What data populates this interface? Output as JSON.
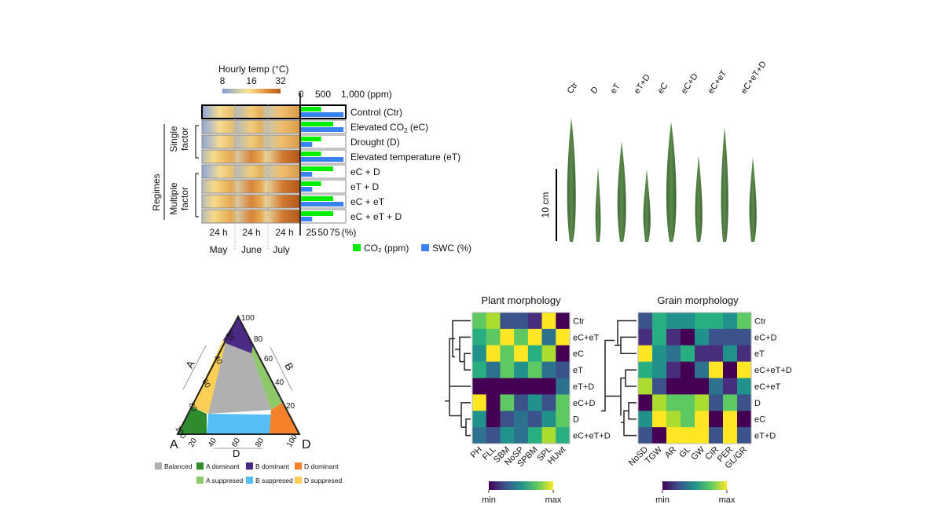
{
  "panel_a": {
    "colorbar_title": "Hourly  temp (°C)",
    "colorbar_ticks": [
      "8",
      "16",
      "32"
    ],
    "co2_axis_ticks": [
      "0",
      "500",
      "1,000 (ppm)"
    ],
    "swc_axis_ticks": [
      "25",
      "50",
      "75",
      "(%)"
    ],
    "time_labels": [
      "24 h",
      "24 h",
      "24 h"
    ],
    "month_labels": [
      "May",
      "June",
      "July"
    ],
    "group_label": "Regimes",
    "subgroup_labels": [
      "Single\nfactor",
      "Multiple\nfactor"
    ],
    "legend": [
      {
        "label": "CO₂ (ppm)",
        "color": "#00ee00"
      },
      {
        "label": "SWC (%)",
        "color": "#3a82f0"
      }
    ]
  },
  "panel_b": {
    "leaf_labels": [
      "Ctr",
      "D",
      "eT",
      "eT+D",
      "eC",
      "eC+D",
      "eC+eT",
      "eC+eT+D"
    ],
    "scale_bar_label": "10 cm"
  },
  "panel_c": {
    "vertex_labels": [
      "A",
      "D"
    ],
    "apex_tick": "100",
    "axis_labels": [
      "A",
      "B",
      "D"
    ],
    "left_ticks": [
      "20",
      "40",
      "60",
      "80",
      "100"
    ],
    "right_ticks": [
      "80",
      "60",
      "40",
      "20"
    ],
    "bottom_ticks": [
      "20",
      "40",
      "60",
      "80",
      "100"
    ],
    "legend": [
      {
        "label": "Balanced",
        "color": "#b0b0b0"
      },
      {
        "label": "A dominant",
        "color": "#2e8b2e"
      },
      {
        "label": "B dominant",
        "color": "#4b2a85"
      },
      {
        "label": "D dominant",
        "color": "#f5822a"
      },
      {
        "label": "A suppresed",
        "color": "#8fc86a"
      },
      {
        "label": "B suppresed",
        "color": "#55bff5"
      },
      {
        "label": "D suppresed",
        "color": "#fdd055"
      }
    ]
  },
  "colorbar_labels": {
    "min": "min",
    "max": "max"
  },
  "chart_data": [
    {
      "type": "bar",
      "title": "",
      "categories": [
        "Control (Ctr)",
        "Elevated CO2 (eC)",
        "Drought (D)",
        "Elevated temperature (eT)",
        "eC + D",
        "eT + D",
        "eC + eT",
        "eC + eT + D"
      ],
      "series": [
        {
          "name": "CO2 (ppm)",
          "color": "#00ee00",
          "values": [
            450,
            720,
            450,
            450,
            720,
            450,
            720,
            720
          ],
          "xlim": [
            0,
            1000
          ]
        },
        {
          "name": "SWC (%)",
          "color": "#3a82f0",
          "values": [
            95,
            95,
            25,
            95,
            25,
            25,
            95,
            25
          ],
          "xlim": [
            0,
            100
          ]
        }
      ]
    },
    {
      "type": "heatmap",
      "title": "Plant morphology",
      "rows": [
        "Ctr",
        "eC+eT",
        "eC",
        "eT",
        "eT+D",
        "eC+D",
        "D",
        "eC+eT+D"
      ],
      "columns": [
        "PH",
        "FLL",
        "SBM",
        "NoSP",
        "SPBM",
        "SPL",
        "HUwt"
      ],
      "colorscale": "viridis",
      "scale": [
        "min",
        "max"
      ],
      "values": [
        [
          0.7,
          0.9,
          0.3,
          0.2,
          0.1,
          1.0,
          0.0
        ],
        [
          0.6,
          0.75,
          1.0,
          0.75,
          1.0,
          0.35,
          1.0
        ],
        [
          0.5,
          1.0,
          0.75,
          1.0,
          0.65,
          0.9,
          0.0
        ],
        [
          0.65,
          0.4,
          0.75,
          0.55,
          0.75,
          0.35,
          0.2
        ],
        [
          0.0,
          0.0,
          0.0,
          0.0,
          0.0,
          0.0,
          0.35
        ],
        [
          1.0,
          0.05,
          0.8,
          0.2,
          0.5,
          0.3,
          0.8
        ],
        [
          0.5,
          0.0,
          0.25,
          0.4,
          0.25,
          0.55,
          0.7
        ],
        [
          0.4,
          0.2,
          0.55,
          0.4,
          0.65,
          0.9,
          0.6
        ]
      ]
    },
    {
      "type": "heatmap",
      "title": "Grain morphology",
      "rows": [
        "Ctr",
        "eC+D",
        "eT",
        "eC+eT+D",
        "eC+eT",
        "D",
        "eC",
        "eT+D"
      ],
      "columns": [
        "NoSD",
        "TGW",
        "AR",
        "GL",
        "GW",
        "CIR",
        "PER",
        "GL/GR"
      ],
      "colorscale": "viridis",
      "scale": [
        "min",
        "max"
      ],
      "values": [
        [
          0.3,
          0.65,
          0.55,
          0.5,
          0.6,
          0.6,
          0.45,
          0.75
        ],
        [
          0.1,
          0.6,
          0.1,
          0.0,
          0.45,
          0.2,
          0.3,
          0.3
        ],
        [
          1.0,
          0.45,
          0.35,
          0.6,
          0.1,
          0.15,
          0.5,
          0.15
        ],
        [
          0.6,
          0.5,
          0.1,
          0.0,
          0.35,
          1.0,
          0.0,
          1.0
        ],
        [
          0.85,
          0.3,
          0.0,
          0.05,
          0.0,
          0.4,
          0.1,
          0.5
        ],
        [
          0.0,
          0.85,
          0.8,
          0.7,
          0.9,
          0.2,
          0.8,
          0.3
        ],
        [
          0.55,
          1.0,
          0.9,
          0.8,
          1.0,
          0.0,
          1.0,
          0.0
        ],
        [
          0.3,
          0.0,
          1.0,
          1.0,
          0.95,
          0.3,
          0.95,
          0.25
        ]
      ]
    }
  ]
}
